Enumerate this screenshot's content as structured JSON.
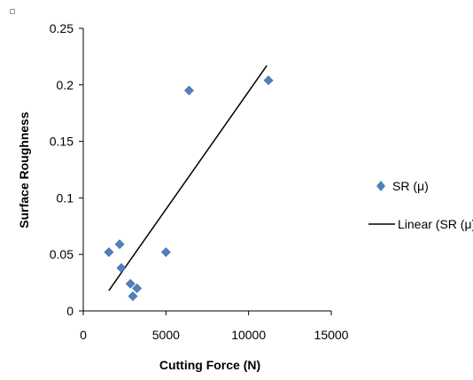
{
  "colors": {
    "marker": "#4f81bd",
    "trendline": "#000000",
    "axis": "#000000"
  },
  "legend": {
    "series_label": "SR (μ)",
    "trend_label": "Linear (SR (μ))"
  },
  "chart_data": {
    "type": "scatter",
    "title": "",
    "xlabel": "Cutting Force  (N)",
    "ylabel": "Surface Roughness",
    "xlim": [
      0,
      15000
    ],
    "ylim": [
      0,
      0.25
    ],
    "xticks": [
      0,
      5000,
      10000,
      15000
    ],
    "yticks": [
      0,
      0.05,
      0.1,
      0.15,
      0.2,
      0.25
    ],
    "xtick_labels": [
      "0",
      "5000",
      "10000",
      "15000"
    ],
    "ytick_labels": [
      "0",
      "0.05",
      "0.1",
      "0.15",
      "0.2",
      "0.25"
    ],
    "grid": false,
    "legend_position": "right",
    "series": [
      {
        "name": "SR (μ)",
        "marker": "diamond",
        "points": [
          {
            "x": 1550,
            "y": 0.052
          },
          {
            "x": 2200,
            "y": 0.059
          },
          {
            "x": 2300,
            "y": 0.038
          },
          {
            "x": 2850,
            "y": 0.024
          },
          {
            "x": 3000,
            "y": 0.013
          },
          {
            "x": 3250,
            "y": 0.02
          },
          {
            "x": 5000,
            "y": 0.052
          },
          {
            "x": 6400,
            "y": 0.195
          },
          {
            "x": 11200,
            "y": 0.204
          }
        ]
      }
    ],
    "trendline": {
      "name": "Linear (SR (μ))",
      "type": "linear",
      "x_start": 1550,
      "y_start": 0.018,
      "x_end": 11100,
      "y_end": 0.217
    }
  }
}
